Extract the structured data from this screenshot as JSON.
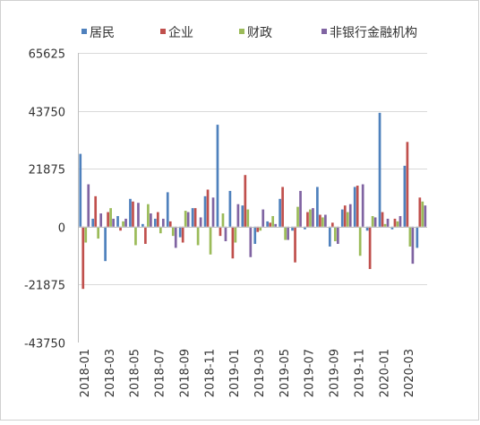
{
  "chart_data": {
    "type": "bar",
    "legend_position": "top",
    "grid": true,
    "x_tick_labels": [
      "2018-01",
      "2018-03",
      "2018-05",
      "2018-07",
      "2018-09",
      "2018-11",
      "2019-01",
      "2019-03",
      "2019-05",
      "2019-07",
      "2019-09",
      "2019-11",
      "2020-01",
      "2020-03"
    ],
    "y_tick_labels": [
      "65625",
      "43750",
      "21875",
      "0",
      "-21875",
      "-43750"
    ],
    "ylim": [
      -43750,
      65625
    ],
    "categories": [
      "2018-01",
      "2018-02",
      "2018-03",
      "2018-04",
      "2018-05",
      "2018-06",
      "2018-07",
      "2018-08",
      "2018-09",
      "2018-10",
      "2018-11",
      "2018-12",
      "2019-01",
      "2019-02",
      "2019-03",
      "2019-04",
      "2019-05",
      "2019-06",
      "2019-07",
      "2019-08",
      "2019-09",
      "2019-10",
      "2019-11",
      "2019-12",
      "2020-01",
      "2020-02",
      "2020-03",
      "2020-04"
    ],
    "series": [
      {
        "name": "居民",
        "color": "#4f81bd",
        "values": [
          27500,
          3000,
          -13000,
          4000,
          10500,
          1000,
          3000,
          13000,
          -4000,
          7000,
          11500,
          38500,
          13500,
          8000,
          -6500,
          2000,
          10500,
          -1500,
          -1000,
          15000,
          -7500,
          6500,
          15000,
          -1500,
          43000,
          -1000,
          23000,
          -8000
        ]
      },
      {
        "name": "企业",
        "color": "#c0504d",
        "values": [
          -23500,
          11500,
          5500,
          -1500,
          9500,
          -6500,
          5500,
          2000,
          -6000,
          7000,
          14000,
          -3500,
          -12000,
          19500,
          -2000,
          1500,
          15000,
          -13500,
          5500,
          4500,
          1500,
          8000,
          15500,
          -16000,
          5500,
          3000,
          32000,
          11000
        ]
      },
      {
        "name": "财政",
        "color": "#9bbb59",
        "values": [
          -6000,
          -4500,
          7000,
          2000,
          -7000,
          8500,
          -2500,
          -3500,
          6000,
          -7000,
          -10500,
          5000,
          -6000,
          6500,
          -1500,
          4000,
          -5000,
          7500,
          6500,
          3500,
          -5500,
          5500,
          -11000,
          4000,
          1000,
          2000,
          -7500,
          9500
        ]
      },
      {
        "name": "非银行金融机构",
        "color": "#8064a2",
        "values": [
          16000,
          5000,
          3000,
          3000,
          9000,
          5000,
          3000,
          -8000,
          5500,
          3500,
          11000,
          -5500,
          8500,
          -11500,
          6500,
          1000,
          -5000,
          13500,
          7000,
          4500,
          -6500,
          8500,
          16000,
          3500,
          3000,
          4000,
          -14000,
          8000
        ]
      }
    ]
  }
}
